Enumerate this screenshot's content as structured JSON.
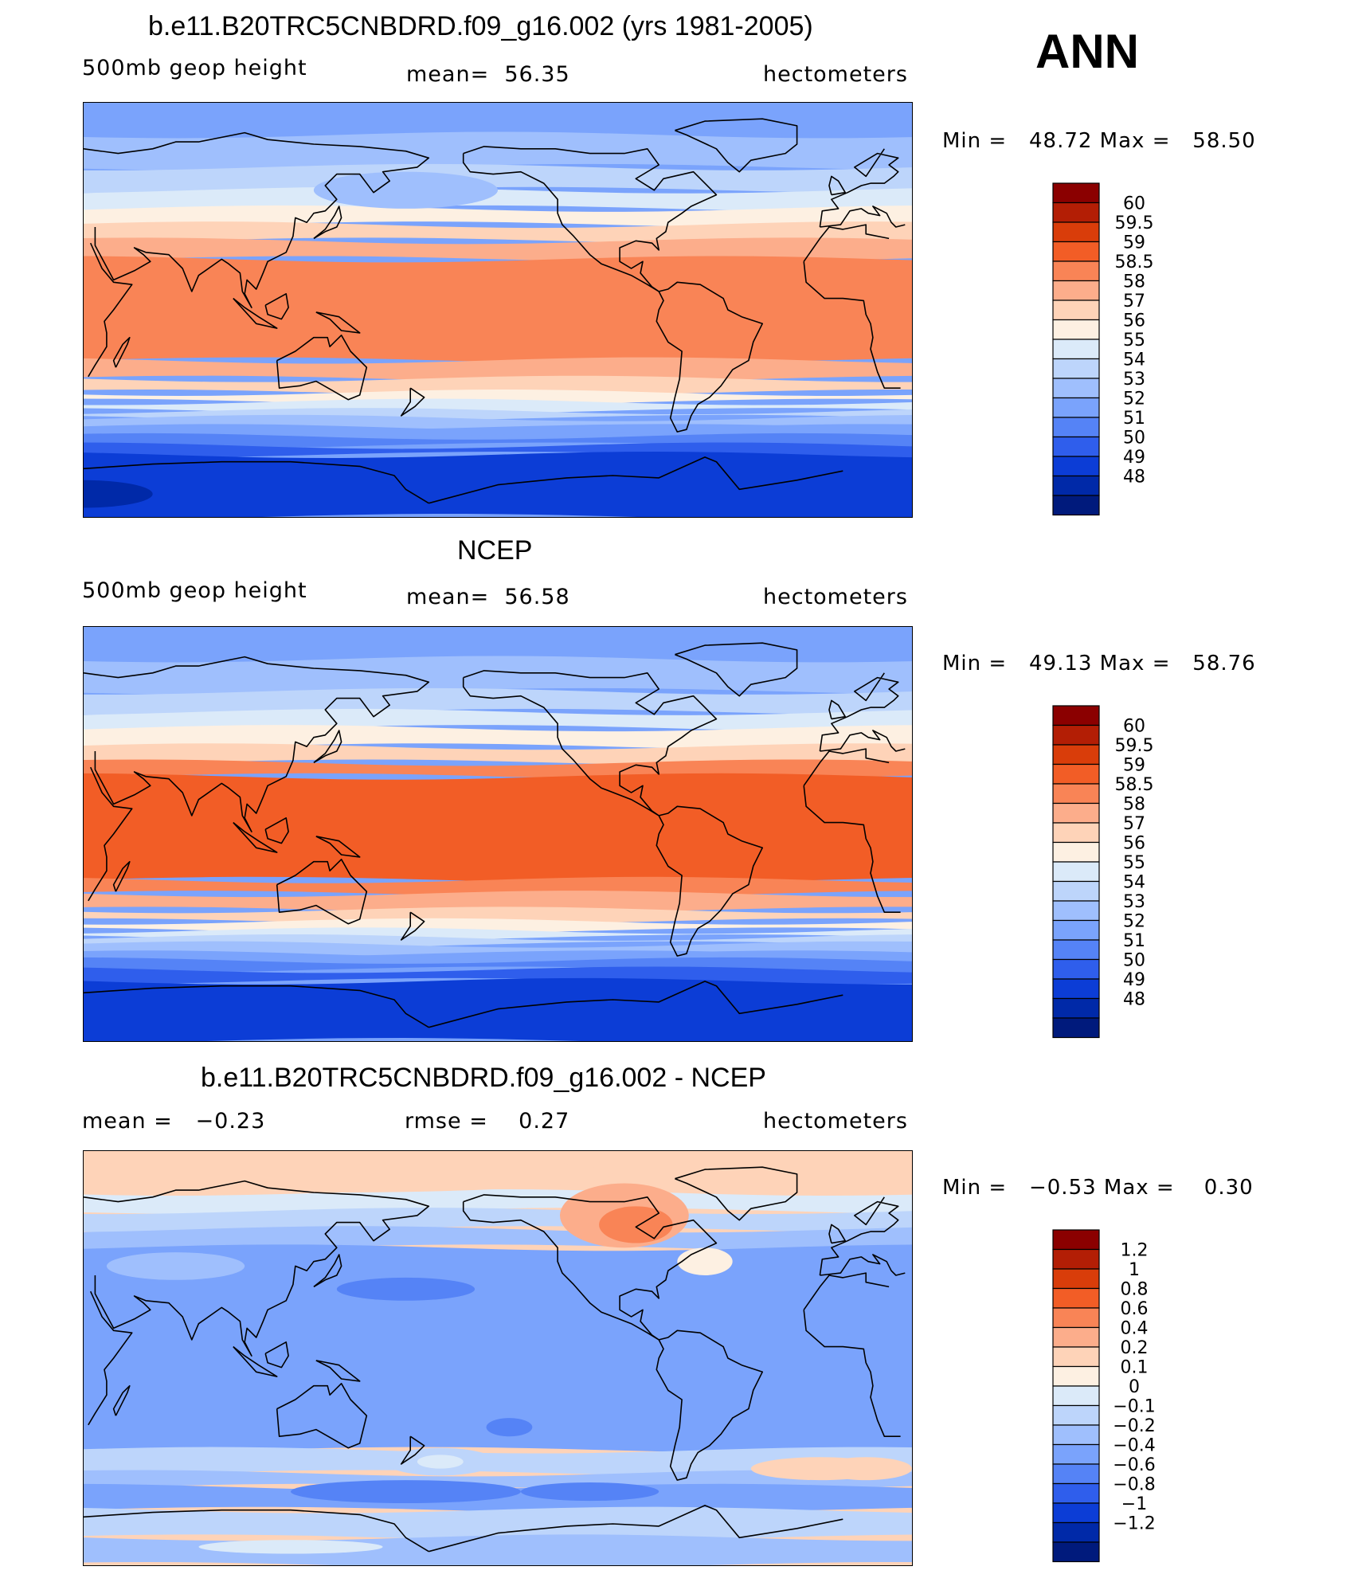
{
  "season": "ANN",
  "chart_data": [
    {
      "type": "heatmap",
      "title": "b.e11.B20TRC5CNBDRD.f09_g16.002 (yrs 1981-2005)",
      "variable": "500mb geop height",
      "stat_left": "mean=  56.35",
      "stat_mid": "",
      "units": "hectometers",
      "min_max": "Min =   48.72 Max =   58.50",
      "min": 48.72,
      "max": 58.5,
      "mean": 56.35,
      "colorbar_labels": [
        "60",
        "59.5",
        "59",
        "58.5",
        "58",
        "57",
        "56",
        "55",
        "54",
        "53",
        "52",
        "51",
        "50",
        "49",
        "48"
      ],
      "colorbar_colors": [
        "#8b0000",
        "#b31e05",
        "#d93d0a",
        "#f25d26",
        "#f98456",
        "#fcad8b",
        "#fed3b8",
        "#fdf0e2",
        "#dbeaf9",
        "#bdd5fb",
        "#9fbffd",
        "#7aa3fc",
        "#5583f6",
        "#2f5eec",
        "#0c3dd6",
        "#0029a8",
        "#001a7c"
      ],
      "bands": [
        {
          "lat_north": 90,
          "lat_south": 76,
          "level": 11
        },
        {
          "lat_north": 76,
          "lat_south": 62,
          "level": 10
        },
        {
          "lat_north": 62,
          "lat_south": 52,
          "level": 9
        },
        {
          "lat_north": 52,
          "lat_south": 44,
          "level": 8
        },
        {
          "lat_north": 44,
          "lat_south": 37,
          "level": 7
        },
        {
          "lat_north": 37,
          "lat_south": 30,
          "level": 6
        },
        {
          "lat_north": 30,
          "lat_south": 22,
          "level": 5
        },
        {
          "lat_north": 22,
          "lat_south": -22,
          "level": 4
        },
        {
          "lat_north": -22,
          "lat_south": -30,
          "level": 5
        },
        {
          "lat_north": -30,
          "lat_south": -36,
          "level": 6
        },
        {
          "lat_north": -36,
          "lat_south": -40,
          "level": 7
        },
        {
          "lat_north": -40,
          "lat_south": -44,
          "level": 8
        },
        {
          "lat_north": -44,
          "lat_south": -47,
          "level": 9
        },
        {
          "lat_north": -47,
          "lat_south": -51,
          "level": 10
        },
        {
          "lat_north": -51,
          "lat_south": -55,
          "level": 11
        },
        {
          "lat_north": -55,
          "lat_south": -59,
          "level": 12
        },
        {
          "lat_north": -59,
          "lat_south": -63,
          "level": 13
        },
        {
          "lat_north": -63,
          "lat_south": -90,
          "level": 14
        }
      ],
      "blobs": [
        {
          "lon": 170,
          "lat": 52,
          "rx": 40,
          "ry": 8,
          "level": 10
        },
        {
          "lon": 30,
          "lat": -80,
          "rx": 30,
          "ry": 6,
          "level": 15
        }
      ]
    },
    {
      "type": "heatmap",
      "title": "NCEP",
      "variable": "500mb geop height",
      "stat_left": "mean=  56.58",
      "stat_mid": "",
      "units": "hectometers",
      "min_max": "Min =   49.13 Max =   58.76",
      "min": 49.13,
      "max": 58.76,
      "mean": 56.58,
      "colorbar_labels": [
        "60",
        "59.5",
        "59",
        "58.5",
        "58",
        "57",
        "56",
        "55",
        "54",
        "53",
        "52",
        "51",
        "50",
        "49",
        "48"
      ],
      "colorbar_colors": [
        "#8b0000",
        "#b31e05",
        "#d93d0a",
        "#f25d26",
        "#f98456",
        "#fcad8b",
        "#fed3b8",
        "#fdf0e2",
        "#dbeaf9",
        "#bdd5fb",
        "#9fbffd",
        "#7aa3fc",
        "#5583f6",
        "#2f5eec",
        "#0c3dd6",
        "#0029a8",
        "#001a7c"
      ],
      "bands": [
        {
          "lat_north": 90,
          "lat_south": 76,
          "level": 11
        },
        {
          "lat_north": 76,
          "lat_south": 62,
          "level": 10
        },
        {
          "lat_north": 62,
          "lat_south": 53,
          "level": 9
        },
        {
          "lat_north": 53,
          "lat_south": 46,
          "level": 8
        },
        {
          "lat_north": 46,
          "lat_south": 38,
          "level": 7
        },
        {
          "lat_north": 38,
          "lat_south": 31,
          "level": 6
        },
        {
          "lat_north": 31,
          "lat_south": 25,
          "level": 4
        },
        {
          "lat_north": 25,
          "lat_south": -20,
          "level": 3
        },
        {
          "lat_north": -20,
          "lat_south": -26,
          "level": 4
        },
        {
          "lat_north": -26,
          "lat_south": -33,
          "level": 5
        },
        {
          "lat_north": -33,
          "lat_south": -38,
          "level": 6
        },
        {
          "lat_north": -38,
          "lat_south": -42,
          "level": 7
        },
        {
          "lat_north": -42,
          "lat_south": -45,
          "level": 8
        },
        {
          "lat_north": -45,
          "lat_south": -48,
          "level": 9
        },
        {
          "lat_north": -48,
          "lat_south": -52,
          "level": 10
        },
        {
          "lat_north": -52,
          "lat_south": -55,
          "level": 11
        },
        {
          "lat_north": -55,
          "lat_south": -59,
          "level": 12
        },
        {
          "lat_north": -59,
          "lat_south": -64,
          "level": 13
        },
        {
          "lat_north": -64,
          "lat_south": -90,
          "level": 14
        }
      ],
      "blobs": []
    },
    {
      "type": "heatmap",
      "title": "b.e11.B20TRC5CNBDRD.f09_g16.002 - NCEP",
      "variable": "",
      "stat_left": "mean =   −0.23",
      "stat_mid": "rmse =    0.27",
      "units": "hectometers",
      "min_max": "Min =   −0.53 Max =    0.30",
      "min": -0.53,
      "max": 0.3,
      "mean": -0.23,
      "rmse": 0.27,
      "colorbar_labels": [
        "1.2",
        "1",
        "0.8",
        "0.6",
        "0.4",
        "0.2",
        "0.1",
        "0",
        "−0.1",
        "−0.2",
        "−0.4",
        "−0.6",
        "−0.8",
        "−1",
        "−1.2"
      ],
      "colorbar_colors": [
        "#8b0000",
        "#b31e05",
        "#d93d0a",
        "#f25d26",
        "#f98456",
        "#fcad8b",
        "#fed3b8",
        "#fdf0e2",
        "#dbeaf9",
        "#bdd5fb",
        "#9fbffd",
        "#7aa3fc",
        "#5583f6",
        "#2f5eec",
        "#0c3dd6",
        "#0029a8",
        "#001a7c"
      ],
      "bands": [
        {
          "lat_north": 90,
          "lat_south": 72,
          "level": 6
        },
        {
          "lat_north": 72,
          "lat_south": 64,
          "level": 8
        },
        {
          "lat_north": 64,
          "lat_south": 56,
          "level": 9
        },
        {
          "lat_north": 56,
          "lat_south": 48,
          "level": 10
        },
        {
          "lat_north": 48,
          "lat_south": -40,
          "level": 11
        },
        {
          "lat_north": -40,
          "lat_south": -50,
          "level": 9
        },
        {
          "lat_north": -50,
          "lat_south": -56,
          "level": 10
        },
        {
          "lat_north": -56,
          "lat_south": -66,
          "level": 11
        },
        {
          "lat_north": -66,
          "lat_south": -78,
          "level": 9
        },
        {
          "lat_north": -78,
          "lat_south": -90,
          "level": 10
        }
      ],
      "blobs": [
        {
          "lon": 140,
          "lat": 80,
          "rx": 120,
          "ry": 8,
          "level": 6
        },
        {
          "lon": 265,
          "lat": 62,
          "rx": 28,
          "ry": 14,
          "level": 5
        },
        {
          "lon": 270,
          "lat": 58,
          "rx": 16,
          "ry": 8,
          "level": 4
        },
        {
          "lon": 300,
          "lat": 42,
          "rx": 12,
          "ry": 6,
          "level": 7
        },
        {
          "lon": 70,
          "lat": 40,
          "rx": 30,
          "ry": 6,
          "level": 10
        },
        {
          "lon": 170,
          "lat": 30,
          "rx": 30,
          "ry": 5,
          "level": 12
        },
        {
          "lon": 185,
          "lat": -45,
          "rx": 24,
          "ry": 6,
          "level": 9
        },
        {
          "lon": 185,
          "lat": -45,
          "rx": 10,
          "ry": 3,
          "level": 8
        },
        {
          "lon": 350,
          "lat": -48,
          "rx": 30,
          "ry": 5,
          "level": 6
        },
        {
          "lon": 10,
          "lat": -48,
          "rx": 20,
          "ry": 5,
          "level": 6
        },
        {
          "lon": 170,
          "lat": -58,
          "rx": 50,
          "ry": 5,
          "level": 12
        },
        {
          "lon": 250,
          "lat": -58,
          "rx": 30,
          "ry": 4,
          "level": 12
        },
        {
          "lon": 215,
          "lat": -30,
          "rx": 10,
          "ry": 4,
          "level": 12
        },
        {
          "lon": 120,
          "lat": -82,
          "rx": 40,
          "ry": 3,
          "level": 8
        }
      ]
    }
  ]
}
